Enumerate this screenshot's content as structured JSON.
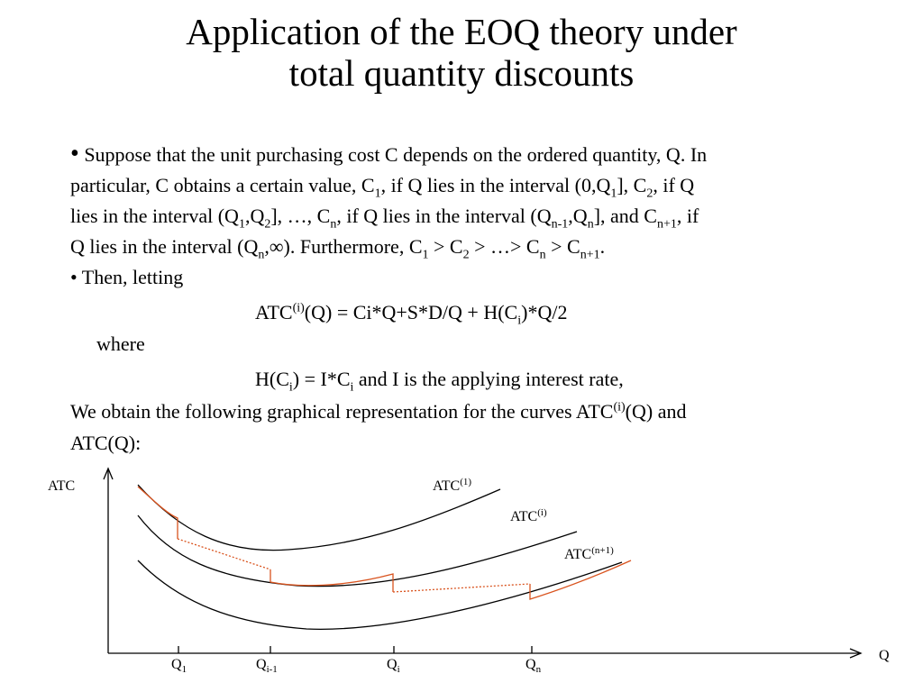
{
  "title": {
    "lines": [
      "Application of the EOQ theory under",
      "total quantity discounts"
    ]
  },
  "body": {
    "lines": [
      {
        "runs": [
          "•",
          " Suppose that the unit purchasing cost C depends on the ordered quantity, Q. In"
        ]
      },
      {
        "runs": [
          "particular, C obtains a certain value, C",
          {
            "sub": "1"
          },
          ", if Q lies in the interval (0,Q",
          {
            "sub": "1"
          },
          "], C",
          {
            "sub": "2"
          },
          ", if Q"
        ]
      },
      {
        "runs": [
          "lies in the interval (Q",
          {
            "sub": "1"
          },
          ",Q",
          {
            "sub": "2"
          },
          "], …, C",
          {
            "sub": "n"
          },
          ", if Q lies in the interval (Q",
          {
            "sub": "n-1"
          },
          ",Q",
          {
            "sub": "n"
          },
          "], and C",
          {
            "sub": "n+1"
          },
          ", if"
        ]
      },
      {
        "runs": [
          "Q lies in the interval  (Q",
          {
            "sub": "n"
          },
          ",∞). Furthermore, C",
          {
            "sub": "1"
          },
          " > C",
          {
            "sub": "2"
          },
          " > …> C",
          {
            "sub": "n"
          },
          " > C",
          {
            "sub": "n+1"
          },
          "."
        ]
      },
      {
        "runs": [
          "• Then, letting"
        ]
      },
      {
        "runs": [
          "ATC",
          {
            "sup": "(i)"
          },
          "(Q) = Ci*Q+S*D/Q + H(C",
          {
            "sub": "i"
          },
          ")*Q/2"
        ]
      },
      {
        "runs": [
          "where"
        ]
      },
      {
        "runs": [
          "H(C",
          {
            "sub": "i"
          },
          ") = I*C",
          {
            "sub": "i"
          },
          " and I is the applying interest rate,"
        ]
      },
      {
        "runs": [
          "We obtain the following graphical representation for the curves ATC",
          {
            "sup": "(i)"
          },
          "(Q) and"
        ]
      },
      {
        "runs": [
          "ATC(Q):"
        ]
      }
    ]
  },
  "diagram": {
    "y_axis": "ATC",
    "x_axis": "Q",
    "x_ticks": [
      {
        "base": "Q",
        "sub": "1"
      },
      {
        "base": "Q",
        "sub": "i-1"
      },
      {
        "base": "Q",
        "sub": "i"
      },
      {
        "base": "Q",
        "sub": "n"
      }
    ],
    "curves": [
      {
        "base": "ATC",
        "sup": "(1)"
      },
      {
        "base": "ATC",
        "sup": "(i)"
      },
      {
        "base": "ATC",
        "sup": "(n+1)"
      }
    ]
  }
}
